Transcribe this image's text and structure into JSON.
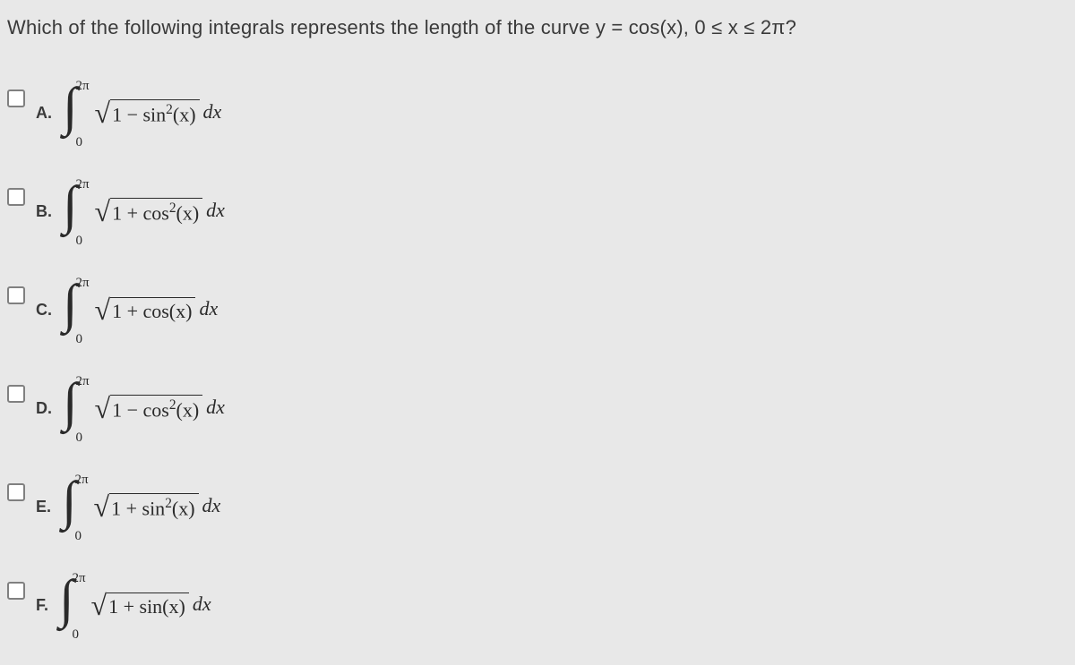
{
  "question": "Which of the following integrals represents the length of the curve y = cos(x),  0 ≤ x ≤ 2π?",
  "integral_style": {
    "upper_limit": "2π",
    "lower_limit": "0",
    "dx": "dx",
    "font_family": "Times New Roman",
    "text_color": "#2a2a2a",
    "background_color": "#e8e8e8"
  },
  "options": [
    {
      "letter": "A.",
      "radicand_html": "1 − sin<sup>2</sup>(x)"
    },
    {
      "letter": "B.",
      "radicand_html": "1 + cos<sup>2</sup>(x)"
    },
    {
      "letter": "C.",
      "radicand_html": "1 + cos(x)"
    },
    {
      "letter": "D.",
      "radicand_html": "1 − cos<sup>2</sup>(x)"
    },
    {
      "letter": "E.",
      "radicand_html": "1 + sin<sup>2</sup>(x)"
    },
    {
      "letter": "F.",
      "radicand_html": "1 + sin(x)"
    }
  ]
}
